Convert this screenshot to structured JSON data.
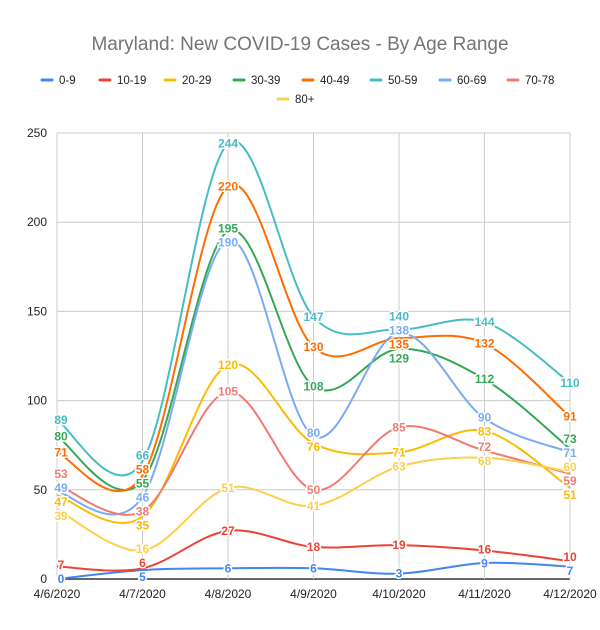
{
  "chart_data": {
    "type": "line",
    "title": "Maryland: New COVID-19 Cases - By Age Range",
    "xlabel": "",
    "ylabel": "",
    "ylim": [
      0,
      250
    ],
    "yticks": [
      0,
      50,
      100,
      150,
      200,
      250
    ],
    "grid": true,
    "legend_position": "top",
    "smooth": true,
    "x": [
      "4/6/2020",
      "4/7/2020",
      "4/8/2020",
      "4/9/2020",
      "4/10/2020",
      "4/11/2020",
      "4/12/2020"
    ],
    "series": [
      {
        "name": "0-9",
        "color": "#4285f4",
        "values": [
          0,
          5,
          6,
          6,
          3,
          9,
          7
        ]
      },
      {
        "name": "10-19",
        "color": "#ea4335",
        "values": [
          7,
          6,
          27,
          18,
          19,
          16,
          10
        ]
      },
      {
        "name": "20-29",
        "color": "#fbbc04",
        "values": [
          47,
          35,
          120,
          76,
          71,
          83,
          51
        ]
      },
      {
        "name": "30-39",
        "color": "#34a853",
        "values": [
          80,
          55,
          195,
          108,
          129,
          112,
          73
        ]
      },
      {
        "name": "40-49",
        "color": "#ff6d01",
        "values": [
          71,
          58,
          220,
          130,
          135,
          132,
          91
        ]
      },
      {
        "name": "50-59",
        "color": "#46bdc6",
        "values": [
          89,
          66,
          244,
          147,
          140,
          144,
          110
        ]
      },
      {
        "name": "60-69",
        "color": "#7baaf7",
        "values": [
          49,
          46,
          190,
          80,
          138,
          90,
          71
        ]
      },
      {
        "name": "70-78",
        "color": "#f07b72",
        "values": [
          53,
          38,
          105,
          50,
          85,
          72,
          59
        ]
      },
      {
        "name": "80+",
        "color": "#fcd04f",
        "values": [
          39,
          16,
          51,
          41,
          63,
          68,
          60
        ]
      }
    ]
  }
}
